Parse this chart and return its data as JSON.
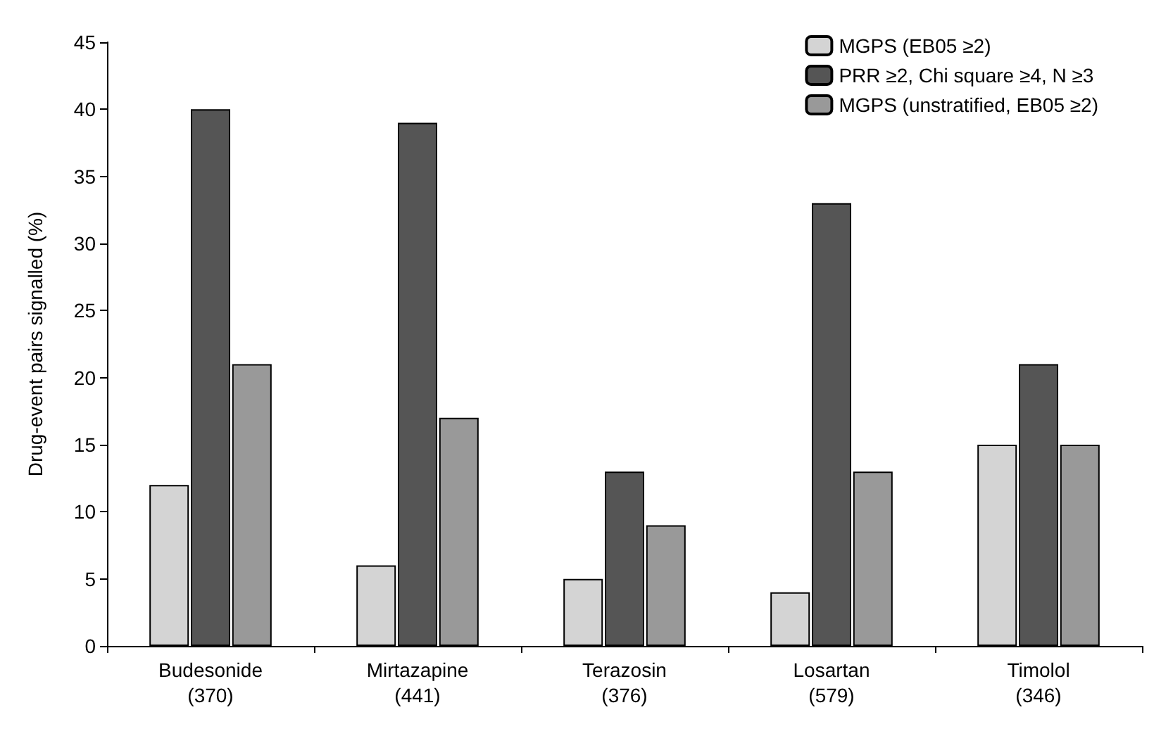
{
  "chart_data": {
    "type": "bar",
    "ylabel": "Drug-event pairs signalled (%)",
    "categories": [
      "Budesonide\n(370)",
      "Mirtazapine\n(441)",
      "Terazosin\n(376)",
      "Losartan\n(579)",
      "Timolol\n(346)"
    ],
    "series": [
      {
        "name": "MGPS (EB05 ≥2)",
        "color": "#d4d4d4",
        "values": [
          12,
          6,
          5,
          4,
          15
        ]
      },
      {
        "name": "PRR ≥2, Chi square ≥4, N ≥3",
        "color": "#555555",
        "values": [
          40,
          39,
          13,
          33,
          21
        ]
      },
      {
        "name": "MGPS (unstratified, EB05 ≥2)",
        "color": "#999999",
        "values": [
          21,
          17,
          9,
          13,
          15
        ]
      }
    ],
    "ylim": [
      0,
      45
    ],
    "yticks": [
      0,
      5,
      10,
      15,
      20,
      25,
      30,
      35,
      40,
      45
    ],
    "grid": false,
    "legend": "top right"
  }
}
